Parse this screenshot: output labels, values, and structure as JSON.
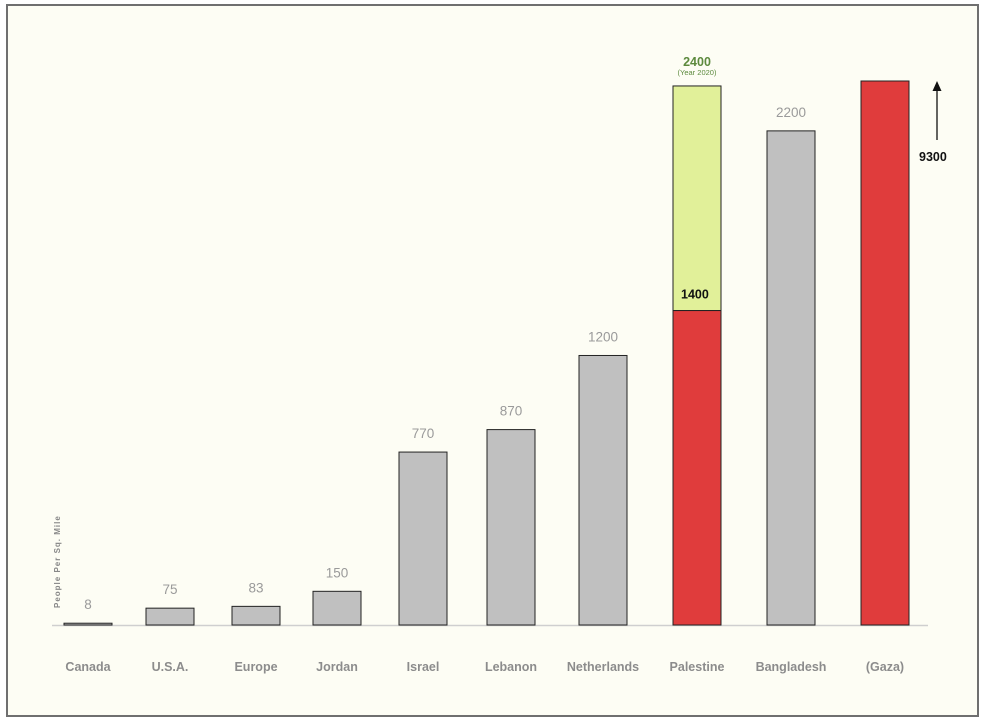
{
  "chart_data": {
    "type": "bar",
    "ylabel": "People Per Sq. Mile",
    "categories": [
      "Canada",
      "U.S.A.",
      "Europe",
      "Jordan",
      "Israel",
      "Lebanon",
      "Netherlands",
      "Palestine",
      "Bangladesh",
      "(Gaza)"
    ],
    "values": [
      8,
      75,
      83,
      150,
      770,
      870,
      1200,
      1400,
      2200,
      9300
    ],
    "value_labels": [
      "8",
      "75",
      "83",
      "150",
      "770",
      "870",
      "1200",
      "1400",
      "2200",
      "9300"
    ],
    "projection": {
      "category": "Palestine",
      "value": 2400,
      "label": "2400",
      "sublabel": "(Year 2020)"
    },
    "colors": {
      "default": "#c0c0c0",
      "highlight": "#e03c3c",
      "projection": "#e1f099",
      "projection_text": "#5d8a3e",
      "background": "#fdfdf4"
    },
    "highlighted": [
      "Palestine",
      "(Gaza)"
    ],
    "broken_scale": "(Gaza)"
  }
}
